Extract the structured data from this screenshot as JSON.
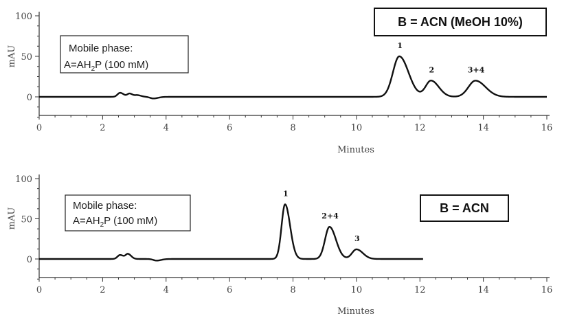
{
  "chart_data": [
    {
      "type": "line",
      "condition_label": "B = ACN (MeOH 10%)",
      "mobile_phase": {
        "line1": "Mobile phase:",
        "line2_pre": "A=AH",
        "line2_sub": "2",
        "line2_post": "P (100 mM)"
      },
      "xlabel": "Minutes",
      "ylabel": "mAU",
      "xlim": [
        0,
        16
      ],
      "ylim": [
        -25,
        100
      ],
      "x_ticks": [
        "0",
        "2",
        "4",
        "6",
        "8",
        "10",
        "12",
        "14",
        "16"
      ],
      "y_ticks": [
        "100",
        "50",
        "0"
      ],
      "baseline_range": [
        0,
        16
      ],
      "peaks": [
        {
          "label": "1",
          "rt": 11.35,
          "height": 50,
          "width": 0.2
        },
        {
          "label": "2",
          "rt": 12.35,
          "height": 20,
          "width": 0.17
        },
        {
          "label": "3+4",
          "rt": 13.75,
          "height": 20,
          "width": 0.22
        }
      ],
      "minor_peaks": [
        {
          "rt": 2.55,
          "height": 5,
          "width": 0.08
        },
        {
          "rt": 2.85,
          "height": 4,
          "width": 0.07
        },
        {
          "rt": 3.1,
          "height": 2,
          "width": 0.08
        },
        {
          "rt": 3.6,
          "height": -2,
          "width": 0.1
        }
      ]
    },
    {
      "type": "line",
      "condition_label": "B = ACN",
      "mobile_phase": {
        "line1": "Mobile phase:",
        "line2_pre": "A=AH",
        "line2_sub": "2",
        "line2_post": "P (100 mM)"
      },
      "xlabel": "Minutes",
      "ylabel": "mAU",
      "xlim": [
        0,
        16
      ],
      "ylim": [
        -25,
        100
      ],
      "x_ticks": [
        "0",
        "2",
        "4",
        "6",
        "8",
        "10",
        "12",
        "14",
        "16"
      ],
      "y_ticks": [
        "100",
        "50",
        "0"
      ],
      "baseline_range": [
        0,
        12.1
      ],
      "peaks": [
        {
          "label": "1",
          "rt": 7.75,
          "height": 68,
          "width": 0.11
        },
        {
          "label": "2+4",
          "rt": 9.15,
          "height": 40,
          "width": 0.14
        },
        {
          "label": "3",
          "rt": 10.0,
          "height": 12,
          "width": 0.14
        }
      ],
      "minor_peaks": [
        {
          "rt": 2.55,
          "height": 5,
          "width": 0.08
        },
        {
          "rt": 2.8,
          "height": 6,
          "width": 0.07
        },
        {
          "rt": 3.7,
          "height": -2,
          "width": 0.1
        }
      ]
    }
  ]
}
